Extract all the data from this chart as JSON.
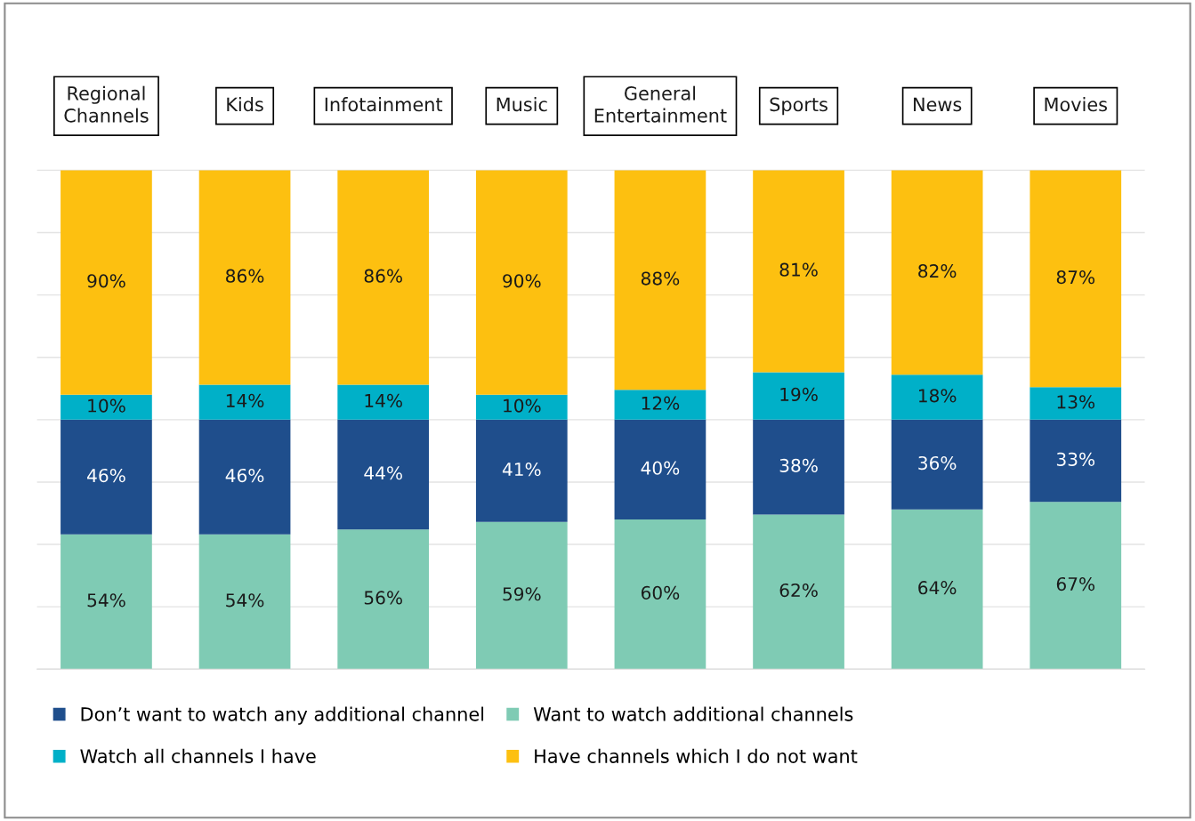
{
  "chart_data": {
    "type": "bar",
    "stacked": true,
    "categories": [
      "Regional\nChannels",
      "Kids",
      "Infotainment",
      "Music",
      "General\nEntertainment",
      "Sports",
      "News",
      "Movies"
    ],
    "series": [
      {
        "name": "Want to watch additional channels",
        "color": "#7fcbb4",
        "values": [
          54,
          54,
          56,
          59,
          60,
          62,
          64,
          67
        ],
        "value_labels": [
          "54%",
          "54%",
          "56%",
          "59%",
          "60%",
          "62%",
          "64%",
          "67%"
        ]
      },
      {
        "name": "Don’t want to watch any additional channel",
        "color": "#1f4e8c",
        "values": [
          46,
          46,
          44,
          41,
          40,
          38,
          36,
          33
        ],
        "value_labels": [
          "46%",
          "46%",
          "44%",
          "41%",
          "40%",
          "38%",
          "36%",
          "33%"
        ]
      },
      {
        "name": "Watch all channels I have",
        "color": "#00b0c8",
        "values": [
          10,
          14,
          14,
          10,
          12,
          19,
          18,
          13
        ],
        "value_labels": [
          "10%",
          "14%",
          "14%",
          "10%",
          "12%",
          "19%",
          "18%",
          "13%"
        ]
      },
      {
        "name": "Have channels which I do not want",
        "color": "#fdc010",
        "values": [
          90,
          86,
          86,
          90,
          88,
          81,
          82,
          87
        ],
        "value_labels": [
          "90%",
          "86%",
          "86%",
          "90%",
          "88%",
          "81%",
          "82%",
          "87%"
        ]
      }
    ],
    "grid": "y",
    "legend": "bottom"
  }
}
